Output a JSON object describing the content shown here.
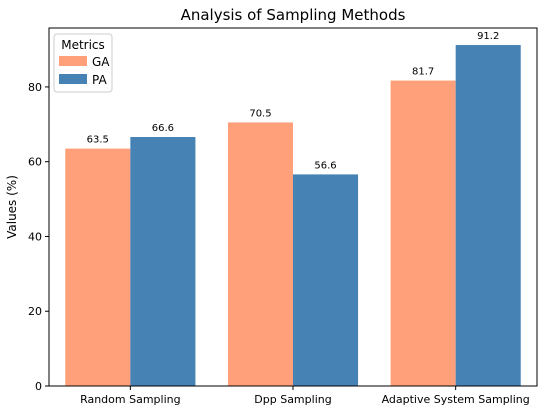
{
  "chart_data": {
    "type": "bar",
    "title": "Analysis of Sampling Methods",
    "xlabel": "",
    "ylabel": "Values (%)",
    "categories": [
      "Random Sampling",
      "Dpp Sampling",
      "Adaptive System Sampling"
    ],
    "series": [
      {
        "name": "GA",
        "values": [
          63.5,
          70.5,
          81.7
        ],
        "color": "#FFA07A"
      },
      {
        "name": "PA",
        "values": [
          66.6,
          56.6,
          91.2
        ],
        "color": "#4682B4"
      }
    ],
    "data_labels": [
      [
        "63.5",
        "70.5",
        "81.7"
      ],
      [
        "66.6",
        "56.6",
        "91.2"
      ]
    ],
    "ylim": [
      0,
      95.76
    ],
    "yticks": [
      0,
      20,
      40,
      60,
      80
    ],
    "grid": false,
    "legend": {
      "title": "Metrics",
      "placement": "top-left"
    }
  }
}
